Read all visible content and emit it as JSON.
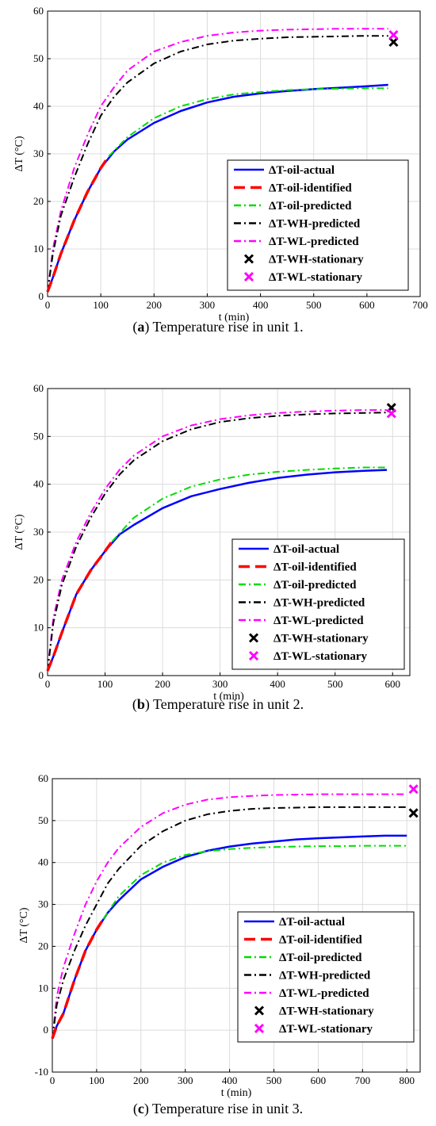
{
  "panels": [
    {
      "caption_letter": "a",
      "caption_text": " Temperature rise in unit 1."
    },
    {
      "caption_letter": "b",
      "caption_text": " Temperature rise in unit 2."
    },
    {
      "caption_letter": "c",
      "caption_text": " Temperature rise in unit 3."
    }
  ],
  "chart_data": [
    {
      "type": "line",
      "xlabel": "t (min)",
      "ylabel": "ΔT (°C)",
      "xlim": [
        0,
        700
      ],
      "ylim": [
        0,
        60
      ],
      "xticks": [
        0,
        100,
        200,
        300,
        400,
        500,
        600,
        700
      ],
      "yticks": [
        0,
        10,
        20,
        30,
        40,
        50,
        60
      ],
      "grid": true,
      "legend_position": "lower-right",
      "series": [
        {
          "name": "ΔT-oil-actual",
          "color": "#0000ff",
          "style": "solid",
          "x": [
            0,
            10,
            25,
            50,
            75,
            100,
            125,
            150,
            200,
            250,
            300,
            350,
            400,
            450,
            500,
            550,
            600,
            640
          ],
          "y": [
            1,
            4,
            9,
            16,
            22,
            27,
            30.5,
            33,
            36.5,
            39,
            40.8,
            42,
            42.7,
            43.2,
            43.6,
            43.9,
            44.2,
            44.5
          ]
        },
        {
          "name": "ΔT-oil-identified",
          "color": "#ff0000",
          "style": "dashed",
          "x": [
            0,
            10,
            25,
            50,
            75,
            100,
            115
          ],
          "y": [
            1,
            4,
            9,
            16,
            22,
            27,
            29.5
          ]
        },
        {
          "name": "ΔT-oil-predicted",
          "color": "#00dd00",
          "style": "dashdot",
          "x": [
            115,
            150,
            200,
            250,
            300,
            350,
            400,
            450,
            500,
            550,
            600,
            640
          ],
          "y": [
            29.5,
            33.5,
            37.5,
            40,
            41.5,
            42.5,
            43,
            43.4,
            43.6,
            43.7,
            43.8,
            43.8
          ]
        },
        {
          "name": "ΔT-WH-predicted",
          "color": "#000000",
          "style": "dashdot",
          "x": [
            0,
            10,
            25,
            50,
            75,
            100,
            125,
            150,
            200,
            250,
            300,
            350,
            400,
            450,
            500,
            550,
            600,
            640
          ],
          "y": [
            1,
            9,
            17,
            25,
            32,
            38,
            42,
            45,
            49,
            51.5,
            53,
            53.8,
            54.2,
            54.5,
            54.6,
            54.7,
            54.8,
            54.8
          ]
        },
        {
          "name": "ΔT-WL-predicted",
          "color": "#ff00ff",
          "style": "dashdot",
          "x": [
            0,
            10,
            25,
            50,
            75,
            100,
            125,
            150,
            200,
            250,
            300,
            350,
            400,
            450,
            500,
            550,
            600,
            640
          ],
          "y": [
            1,
            10,
            18,
            27,
            34,
            40,
            44,
            47.5,
            51.5,
            53.5,
            54.8,
            55.5,
            55.9,
            56.1,
            56.2,
            56.3,
            56.3,
            56.3
          ]
        },
        {
          "name": "ΔT-WH-stationary",
          "color": "#000000",
          "style": "marker",
          "x": [
            650
          ],
          "y": [
            53.5
          ]
        },
        {
          "name": "ΔT-WL-stationary",
          "color": "#ff00ff",
          "style": "marker",
          "x": [
            650
          ],
          "y": [
            55.0
          ]
        }
      ]
    },
    {
      "type": "line",
      "xlabel": "t (min)",
      "ylabel": "ΔT (°C)",
      "xlim": [
        0,
        630
      ],
      "ylim": [
        0,
        60
      ],
      "xticks": [
        0,
        100,
        200,
        300,
        400,
        500,
        600
      ],
      "yticks": [
        0,
        10,
        20,
        30,
        40,
        50,
        60
      ],
      "grid": true,
      "legend_position": "lower-right",
      "series": [
        {
          "name": "ΔT-oil-actual",
          "color": "#0000ff",
          "style": "solid",
          "x": [
            0,
            10,
            25,
            50,
            75,
            100,
            125,
            150,
            200,
            250,
            300,
            350,
            400,
            450,
            500,
            550,
            590
          ],
          "y": [
            1,
            4,
            9,
            17,
            22,
            26,
            29.5,
            31.5,
            35,
            37.5,
            39,
            40.3,
            41.3,
            42,
            42.5,
            42.8,
            43
          ]
        },
        {
          "name": "ΔT-oil-identified",
          "color": "#ff0000",
          "style": "dashed",
          "x": [
            0,
            10,
            25,
            50,
            75,
            100,
            112
          ],
          "y": [
            1,
            4,
            9,
            17,
            22,
            26,
            28
          ]
        },
        {
          "name": "ΔT-oil-predicted",
          "color": "#00dd00",
          "style": "dashdot",
          "x": [
            112,
            150,
            200,
            250,
            300,
            350,
            400,
            450,
            500,
            550,
            590
          ],
          "y": [
            28,
            33,
            37,
            39.5,
            41,
            42,
            42.6,
            43,
            43.3,
            43.5,
            43.5
          ]
        },
        {
          "name": "ΔT-WH-predicted",
          "color": "#000000",
          "style": "dashdot",
          "x": [
            0,
            10,
            25,
            50,
            75,
            100,
            125,
            150,
            200,
            250,
            300,
            350,
            400,
            450,
            500,
            550,
            590
          ],
          "y": [
            1,
            11,
            19,
            27,
            33,
            38,
            42,
            45,
            49,
            51.5,
            53,
            53.8,
            54.3,
            54.6,
            54.8,
            54.9,
            55
          ]
        },
        {
          "name": "ΔT-WL-predicted",
          "color": "#ff00ff",
          "style": "dashdot",
          "x": [
            0,
            10,
            25,
            50,
            75,
            100,
            125,
            150,
            200,
            250,
            300,
            350,
            400,
            450,
            500,
            550,
            590
          ],
          "y": [
            1,
            12,
            20,
            28,
            34,
            39,
            43,
            46,
            50,
            52.3,
            53.6,
            54.4,
            54.9,
            55.2,
            55.4,
            55.5,
            55.5
          ]
        },
        {
          "name": "ΔT-WH-stationary",
          "color": "#000000",
          "style": "marker",
          "x": [
            598
          ],
          "y": [
            56.0
          ]
        },
        {
          "name": "ΔT-WL-stationary",
          "color": "#ff00ff",
          "style": "marker",
          "x": [
            598
          ],
          "y": [
            54.8
          ]
        }
      ]
    },
    {
      "type": "line",
      "xlabel": "t (min)",
      "ylabel": "ΔT (°C)",
      "xlim": [
        0,
        830
      ],
      "ylim": [
        -10,
        60
      ],
      "xticks": [
        0,
        100,
        200,
        300,
        400,
        500,
        600,
        700,
        800
      ],
      "yticks": [
        -10,
        0,
        10,
        20,
        30,
        40,
        50,
        60
      ],
      "grid": true,
      "legend_position": "lower-right",
      "series": [
        {
          "name": "ΔT-oil-actual",
          "color": "#0000ff",
          "style": "solid",
          "x": [
            0,
            10,
            25,
            50,
            75,
            100,
            125,
            150,
            200,
            250,
            300,
            350,
            400,
            450,
            500,
            550,
            600,
            650,
            700,
            750,
            800
          ],
          "y": [
            -2,
            1,
            4,
            12,
            19,
            24,
            28,
            31,
            36,
            39,
            41.3,
            42.8,
            43.8,
            44.5,
            45,
            45.5,
            45.8,
            46,
            46.2,
            46.4,
            46.4
          ]
        },
        {
          "name": "ΔT-oil-identified",
          "color": "#ff0000",
          "style": "dashed",
          "x": [
            0,
            10,
            25,
            50,
            75,
            100,
            115
          ],
          "y": [
            -2,
            1,
            4,
            12,
            19,
            24,
            26.5
          ]
        },
        {
          "name": "ΔT-oil-predicted",
          "color": "#00dd00",
          "style": "dashdot",
          "x": [
            115,
            150,
            200,
            250,
            300,
            350,
            400,
            450,
            500,
            550,
            600,
            650,
            700,
            750,
            800
          ],
          "y": [
            26.5,
            32,
            37,
            40,
            41.8,
            42.7,
            43.2,
            43.5,
            43.7,
            43.8,
            43.9,
            43.9,
            44,
            44,
            44
          ]
        },
        {
          "name": "ΔT-WH-predicted",
          "color": "#000000",
          "style": "dashdot",
          "x": [
            0,
            10,
            25,
            50,
            75,
            100,
            125,
            150,
            200,
            250,
            300,
            350,
            400,
            450,
            500,
            550,
            600,
            650,
            700,
            750,
            800
          ],
          "y": [
            -2,
            6,
            12,
            19,
            25,
            30,
            35,
            38.5,
            44,
            47.5,
            50,
            51.5,
            52.3,
            52.8,
            53,
            53.1,
            53.2,
            53.2,
            53.2,
            53.2,
            53.2
          ]
        },
        {
          "name": "ΔT-WL-predicted",
          "color": "#ff00ff",
          "style": "dashdot",
          "x": [
            0,
            10,
            25,
            50,
            75,
            100,
            125,
            150,
            200,
            250,
            300,
            350,
            400,
            450,
            500,
            550,
            600,
            650,
            700,
            750,
            800
          ],
          "y": [
            -2,
            8,
            15,
            23,
            30,
            35.5,
            40,
            43.5,
            48.5,
            51.8,
            53.8,
            55,
            55.6,
            55.9,
            56.1,
            56.2,
            56.3,
            56.3,
            56.3,
            56.3,
            56.3
          ]
        },
        {
          "name": "ΔT-WH-stationary",
          "color": "#000000",
          "style": "marker",
          "x": [
            815
          ],
          "y": [
            51.8
          ]
        },
        {
          "name": "ΔT-WL-stationary",
          "color": "#ff00ff",
          "style": "marker",
          "x": [
            815
          ],
          "y": [
            57.5
          ]
        }
      ]
    }
  ]
}
